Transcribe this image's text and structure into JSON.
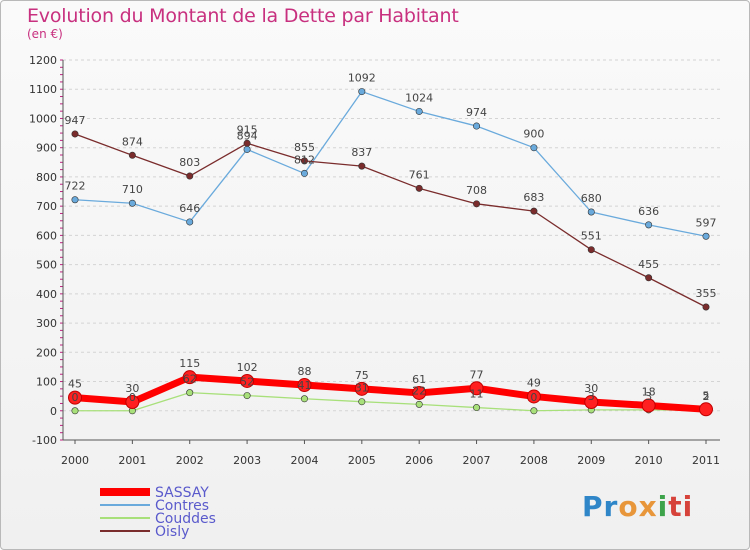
{
  "title": "Evolution du Montant de la Dette par Habitant",
  "subtitle": "(en €)",
  "logo": {
    "text": "Proxiti",
    "colors": [
      "#2f86c8",
      "#e8963a",
      "#3da34a",
      "#d6423a"
    ]
  },
  "chart_data": {
    "type": "line",
    "title": "Evolution du Montant de la Dette par Habitant",
    "subtitle": "(en €)",
    "xlabel": "",
    "ylabel": "",
    "ylim": [
      -100,
      1200
    ],
    "yticks": [
      -100,
      0,
      100,
      200,
      300,
      400,
      500,
      600,
      700,
      800,
      900,
      1000,
      1100,
      1200
    ],
    "categories": [
      "2000",
      "2001",
      "2002",
      "2003",
      "2004",
      "2005",
      "2006",
      "2007",
      "2008",
      "2009",
      "2010",
      "2011"
    ],
    "grid": "horizontal dashed",
    "legend": "bottom-left",
    "series": [
      {
        "name": "SASSAY",
        "color": "#ff0000",
        "emphasis": "thick",
        "values": [
          45,
          30,
          115,
          102,
          88,
          75,
          61,
          77,
          49,
          30,
          18,
          5
        ],
        "labels": [
          "45",
          "30",
          "115",
          "102",
          "88",
          "75",
          "61",
          "77",
          "49",
          "30",
          "18",
          "5"
        ]
      },
      {
        "name": "Contres",
        "color": "#6aaadc",
        "values": [
          722,
          710,
          646,
          894,
          812,
          1092,
          1024,
          974,
          900,
          680,
          636,
          597
        ],
        "labels": [
          "722",
          "710",
          "646",
          "894",
          "812",
          "1092",
          "1024",
          "974",
          "900",
          "680",
          "636",
          "597"
        ]
      },
      {
        "name": "Couddes",
        "color": "#a8e07a",
        "values": [
          0,
          0,
          62,
          52,
          41,
          31,
          22,
          11,
          0,
          3,
          3,
          2
        ],
        "labels": [
          "0",
          "0",
          "62",
          "52",
          "41",
          "31",
          "22",
          "11",
          "0",
          "3",
          "3",
          "2"
        ]
      },
      {
        "name": "Oisly",
        "color": "#7a2c2c",
        "values": [
          947,
          874,
          803,
          915,
          855,
          837,
          761,
          708,
          683,
          551,
          455,
          355
        ],
        "labels": [
          "947",
          "874",
          "803",
          "915",
          "855",
          "837",
          "761",
          "708",
          "683",
          "551",
          "455",
          "355"
        ]
      }
    ]
  }
}
